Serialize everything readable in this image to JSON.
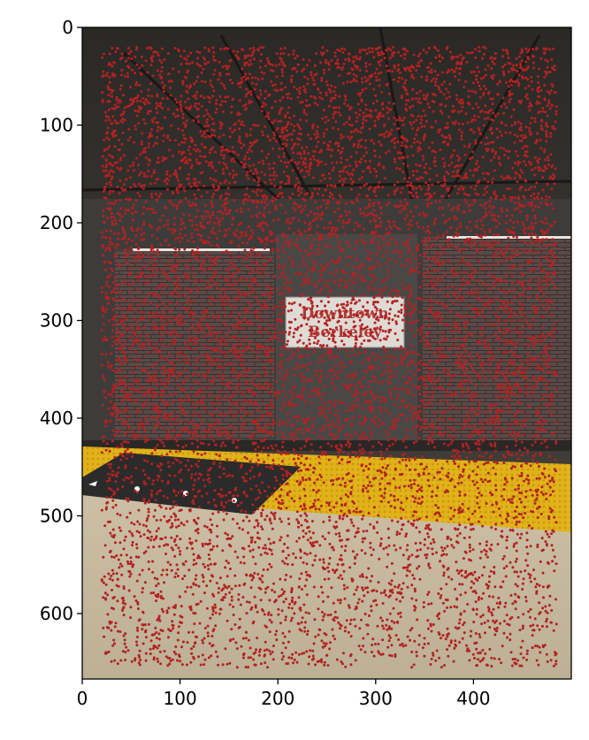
{
  "chart_data": {
    "type": "scatter",
    "title": "",
    "xlabel": "",
    "ylabel": "",
    "xlim": [
      0,
      500
    ],
    "ylim": [
      667,
      0
    ],
    "y_inverted": true,
    "grid": false,
    "legend": "none",
    "xticks": [
      0,
      100,
      200,
      300,
      400
    ],
    "yticks": [
      0,
      100,
      200,
      300,
      400,
      500,
      600
    ],
    "background_image": {
      "description": "subway station platform photo",
      "sign_text": [
        "Downtown",
        "Berkeley"
      ]
    },
    "series": [
      {
        "name": "points",
        "color": "#b22222",
        "marker": "dot",
        "point_count_estimate": 9000,
        "regions": [
          {
            "name": "upper wall and ceiling",
            "x_range": [
              20,
              485
            ],
            "y_range": [
              20,
              430
            ],
            "density": "dense"
          },
          {
            "name": "platform floor",
            "x_range": [
              20,
              485
            ],
            "y_range": [
              430,
              655
            ],
            "density": "medium"
          }
        ]
      }
    ]
  }
}
